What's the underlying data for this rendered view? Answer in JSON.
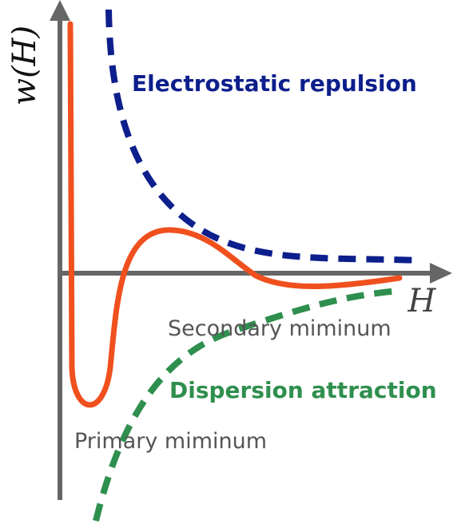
{
  "diagram": {
    "y_axis_label": "w(H)",
    "x_axis_label": "H",
    "curves": {
      "repulsion": {
        "label": "Electrostatic repulsion",
        "color": "#0d1f8c",
        "style": "dashed"
      },
      "attraction": {
        "label": "Dispersion attraction",
        "color": "#2f8f4e",
        "style": "dashed"
      },
      "total": {
        "color": "#f0501e",
        "style": "solid"
      }
    },
    "annotations": {
      "secondary": "Secondary miminum",
      "primary": "Primary miminum"
    },
    "axis_color": "#666666",
    "annotation_color": "#555555"
  }
}
